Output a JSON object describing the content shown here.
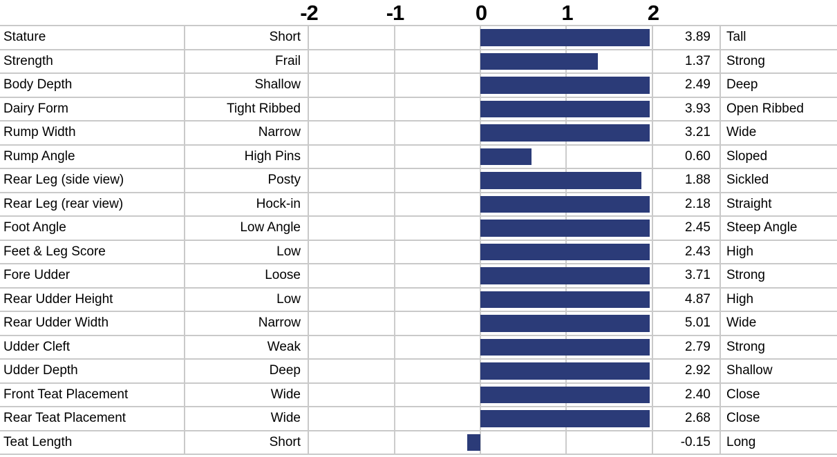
{
  "chart_data": {
    "type": "bar",
    "orientation": "horizontal",
    "title": "",
    "xlabel": "",
    "ylabel": "",
    "xlim": [
      -2,
      2
    ],
    "x_ticks": [
      "-2",
      "-1",
      "0",
      "1",
      "2"
    ],
    "x_tick_values": [
      -2,
      -1,
      0,
      1,
      2
    ],
    "bars_clipped_at": 2,
    "bar_color": "#2B3B78",
    "gridline_color": "#CCCCCC",
    "border_color": "#C9C9C9",
    "legend": "none",
    "grid": "vertical gridlines at each tick",
    "rows": [
      {
        "trait": "Stature",
        "low_label": "Short",
        "value": 3.89,
        "value_display": "3.89",
        "high_label": "Tall"
      },
      {
        "trait": "Strength",
        "low_label": "Frail",
        "value": 1.37,
        "value_display": "1.37",
        "high_label": "Strong"
      },
      {
        "trait": "Body Depth",
        "low_label": "Shallow",
        "value": 2.49,
        "value_display": "2.49",
        "high_label": "Deep"
      },
      {
        "trait": "Dairy Form",
        "low_label": "Tight Ribbed",
        "value": 3.93,
        "value_display": "3.93",
        "high_label": "Open Ribbed"
      },
      {
        "trait": "Rump Width",
        "low_label": "Narrow",
        "value": 3.21,
        "value_display": "3.21",
        "high_label": "Wide"
      },
      {
        "trait": "Rump Angle",
        "low_label": "High Pins",
        "value": 0.6,
        "value_display": "0.60",
        "high_label": "Sloped"
      },
      {
        "trait": "Rear Leg (side view)",
        "low_label": "Posty",
        "value": 1.88,
        "value_display": "1.88",
        "high_label": "Sickled"
      },
      {
        "trait": "Rear Leg (rear view)",
        "low_label": "Hock-in",
        "value": 2.18,
        "value_display": "2.18",
        "high_label": "Straight"
      },
      {
        "trait": "Foot Angle",
        "low_label": "Low Angle",
        "value": 2.45,
        "value_display": "2.45",
        "high_label": "Steep Angle"
      },
      {
        "trait": "Feet & Leg Score",
        "low_label": "Low",
        "value": 2.43,
        "value_display": "2.43",
        "high_label": "High"
      },
      {
        "trait": "Fore Udder",
        "low_label": "Loose",
        "value": 3.71,
        "value_display": "3.71",
        "high_label": "Strong"
      },
      {
        "trait": "Rear Udder Height",
        "low_label": "Low",
        "value": 4.87,
        "value_display": "4.87",
        "high_label": "High"
      },
      {
        "trait": "Rear Udder Width",
        "low_label": "Narrow",
        "value": 5.01,
        "value_display": "5.01",
        "high_label": "Wide"
      },
      {
        "trait": "Udder Cleft",
        "low_label": "Weak",
        "value": 2.79,
        "value_display": "2.79",
        "high_label": "Strong"
      },
      {
        "trait": "Udder Depth",
        "low_label": "Deep",
        "value": 2.92,
        "value_display": "2.92",
        "high_label": "Shallow"
      },
      {
        "trait": "Front Teat Placement",
        "low_label": "Wide",
        "value": 2.4,
        "value_display": "2.40",
        "high_label": "Close"
      },
      {
        "trait": "Rear Teat Placement",
        "low_label": "Wide",
        "value": 2.68,
        "value_display": "2.68",
        "high_label": "Close"
      },
      {
        "trait": "Teat Length",
        "low_label": "Short",
        "value": -0.15,
        "value_display": "-0.15",
        "high_label": "Long"
      }
    ]
  }
}
